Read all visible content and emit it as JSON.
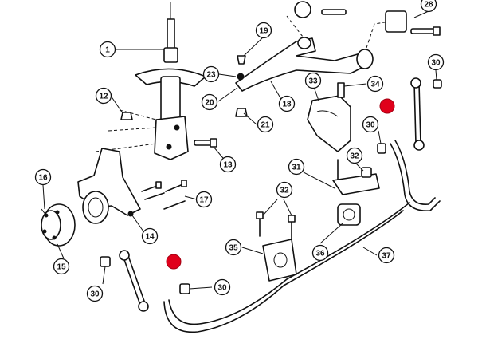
{
  "callouts": {
    "c1": "1",
    "c12": "12",
    "c13": "13",
    "c14": "14",
    "c15": "15",
    "c16": "16",
    "c17": "17",
    "c18": "18",
    "c19": "19",
    "c20": "20",
    "c21": "21",
    "c23": "23",
    "c28": "28",
    "c30a": "30",
    "c30b": "30",
    "c30c": "30",
    "c30d": "30",
    "c31": "31",
    "c32a": "32",
    "c32b": "32",
    "c33": "33",
    "c34": "34",
    "c35": "35",
    "c36": "36",
    "c37": "37"
  },
  "colors": {
    "line_art": "#111111",
    "hotspot": "#e0001b",
    "background": "#ffffff"
  }
}
